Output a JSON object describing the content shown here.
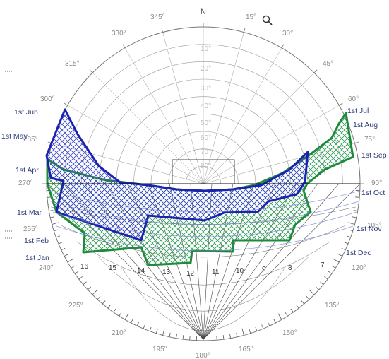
{
  "diagram": {
    "north_label": "N",
    "azimuth_labels": [
      {
        "key": "a15",
        "text": "15°"
      },
      {
        "key": "a30",
        "text": "30°"
      },
      {
        "key": "a45",
        "text": "45°"
      },
      {
        "key": "a60",
        "text": "60°"
      },
      {
        "key": "a75",
        "text": "75°"
      },
      {
        "key": "a90",
        "text": "90°"
      },
      {
        "key": "a105",
        "text": "105°"
      },
      {
        "key": "a120",
        "text": "120°"
      },
      {
        "key": "a135",
        "text": "135°"
      },
      {
        "key": "a150",
        "text": "150°"
      },
      {
        "key": "a165",
        "text": "165°"
      },
      {
        "key": "a180",
        "text": "180°"
      },
      {
        "key": "a195",
        "text": "195°"
      },
      {
        "key": "a210",
        "text": "210°"
      },
      {
        "key": "a225",
        "text": "225°"
      },
      {
        "key": "a240",
        "text": "240°"
      },
      {
        "key": "a255",
        "text": "255°"
      },
      {
        "key": "a270",
        "text": "270°"
      },
      {
        "key": "a285",
        "text": "285°"
      },
      {
        "key": "a300",
        "text": "300°"
      },
      {
        "key": "a315",
        "text": "315°"
      },
      {
        "key": "a330",
        "text": "330°"
      },
      {
        "key": "a345",
        "text": "345°"
      }
    ],
    "altitude_labels": [
      "10°",
      "20°",
      "30°",
      "40°",
      "50°",
      "60°",
      "70°",
      "80°"
    ],
    "month_labels_left": [
      "1st Jun",
      "1st May",
      "1st Apr",
      "1st Mar",
      "1st Feb",
      "1st Jan"
    ],
    "month_labels_right": [
      "1st Jul",
      "1st Aug",
      "1st Sep",
      "1st Oct",
      "1st Nov",
      "1st Dec"
    ],
    "hour_labels": [
      "16",
      "15",
      "14",
      "13",
      "12",
      "11",
      "10",
      "9",
      "8",
      "7"
    ],
    "colors": {
      "background": "#ffffff",
      "grid": "#999999",
      "summer_outline": "#1c22b0",
      "winter_outline": "#1e8a3c",
      "summer_hatch": "#3b46c8",
      "winter_hatch": "#2f9a55",
      "ticks": "#555555"
    },
    "zoom_icon": "magnifier-icon"
  }
}
